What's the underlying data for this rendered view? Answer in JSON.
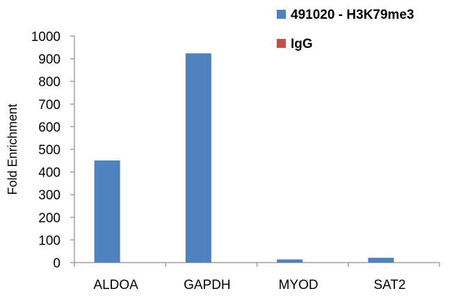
{
  "chart_data": {
    "type": "bar",
    "title": "",
    "xlabel": "",
    "ylabel": "Fold Enrichment",
    "categories": [
      "ALDOA",
      "GAPDH",
      "MYOD",
      "SAT2"
    ],
    "series": [
      {
        "name": "491020 - H3K79me3",
        "color": "#4f81bd",
        "values": [
          451,
          924,
          14,
          21
        ]
      },
      {
        "name": "IgG",
        "color": "#c0504d",
        "values": [
          0,
          0,
          0,
          0
        ]
      }
    ],
    "ylim": [
      0,
      1000
    ],
    "yticks": [
      0,
      100,
      200,
      300,
      400,
      500,
      600,
      700,
      800,
      900,
      1000
    ],
    "grid": false,
    "legend": "top-right"
  }
}
